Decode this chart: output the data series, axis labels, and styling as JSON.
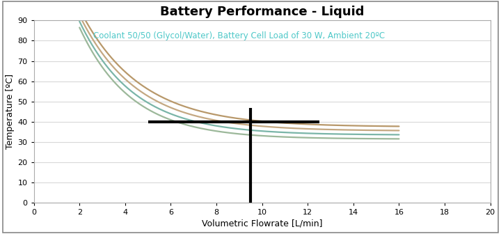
{
  "title": "Battery Performance - Liquid",
  "subtitle": "Coolant 50/50 (Glycol/Water), Battery Cell Load of 30 W, Ambient 20ºC",
  "subtitle_color": "#4EC8C8",
  "xlabel": "Volumetric Flowrate [L/min]",
  "ylabel": "Temperature [ºC]",
  "xlim": [
    0,
    20
  ],
  "ylim": [
    0,
    90
  ],
  "xticks": [
    0,
    2,
    4,
    6,
    8,
    10,
    12,
    14,
    16,
    18,
    20
  ],
  "yticks": [
    0,
    10,
    20,
    30,
    40,
    50,
    60,
    70,
    80,
    90
  ],
  "x_start": 2.0,
  "x_end": 16.0,
  "curves": [
    {
      "color": "#B8986A",
      "A": 58,
      "b": 0.38,
      "C": 37.5
    },
    {
      "color": "#C4A882",
      "A": 57,
      "b": 0.4,
      "C": 35.5
    },
    {
      "color": "#7AB5A8",
      "A": 56,
      "b": 0.42,
      "C": 33.5
    },
    {
      "color": "#9CB89A",
      "A": 55,
      "b": 0.44,
      "C": 31.5
    }
  ],
  "crosshair_x": 9.5,
  "crosshair_y": 40,
  "crosshair_hline_xstart": 5.0,
  "crosshair_hline_xend": 12.5,
  "crosshair_vline_ystart": 0,
  "crosshair_vline_yend": 47,
  "bg_color": "#FFFFFF",
  "plot_bg_color": "#FFFFFF",
  "title_fontsize": 13,
  "subtitle_fontsize": 8.5,
  "axis_label_fontsize": 9,
  "tick_fontsize": 8,
  "grid_color": "#D8D8D8",
  "border_color": "#AAAAAA"
}
